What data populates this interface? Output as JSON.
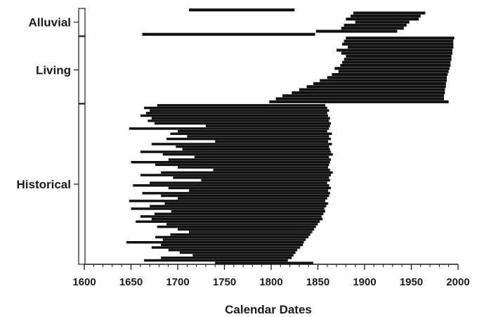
{
  "chart_data": {
    "type": "bar",
    "orientation": "horizontal-range",
    "title": "",
    "xlabel": "Calendar Dates",
    "ylabel": "",
    "xlim": [
      1600,
      2000
    ],
    "x_ticks": [
      1600,
      1650,
      1700,
      1750,
      1800,
      1850,
      1900,
      1950,
      2000
    ],
    "grid": false,
    "legend": "none",
    "bar_color": "#111111",
    "groups": [
      {
        "name": "Alluvial",
        "ranges": [
          [
            1712,
            1825
          ],
          [
            1888,
            1965
          ],
          [
            1885,
            1960
          ],
          [
            1880,
            1958
          ],
          [
            1890,
            1948
          ],
          [
            1878,
            1945
          ],
          [
            1875,
            1942
          ],
          [
            1848,
            1935
          ],
          [
            1662,
            1847
          ]
        ]
      },
      {
        "name": "Living",
        "ranges": [
          [
            1880,
            1996
          ],
          [
            1878,
            1995
          ],
          [
            1876,
            1995
          ],
          [
            1882,
            1995
          ],
          [
            1870,
            1994
          ],
          [
            1875,
            1994
          ],
          [
            1880,
            1993
          ],
          [
            1878,
            1993
          ],
          [
            1876,
            1992
          ],
          [
            1874,
            1992
          ],
          [
            1868,
            1991
          ],
          [
            1872,
            1990
          ],
          [
            1865,
            1989
          ],
          [
            1860,
            1988
          ],
          [
            1852,
            1988
          ],
          [
            1845,
            1987
          ],
          [
            1838,
            1987
          ],
          [
            1830,
            1986
          ],
          [
            1822,
            1986
          ],
          [
            1812,
            1985
          ],
          [
            1805,
            1985
          ],
          [
            1798,
            1990
          ]
        ]
      },
      {
        "name": "Historical",
        "ranges": [
          [
            1678,
            1858
          ],
          [
            1664,
            1860
          ],
          [
            1670,
            1862
          ],
          [
            1666,
            1860
          ],
          [
            1660,
            1861
          ],
          [
            1672,
            1863
          ],
          [
            1668,
            1862
          ],
          [
            1675,
            1864
          ],
          [
            1730,
            1863
          ],
          [
            1648,
            1862
          ],
          [
            1700,
            1860
          ],
          [
            1692,
            1865
          ],
          [
            1710,
            1862
          ],
          [
            1688,
            1864
          ],
          [
            1740,
            1861
          ],
          [
            1672,
            1865
          ],
          [
            1698,
            1862
          ],
          [
            1705,
            1863
          ],
          [
            1660,
            1864
          ],
          [
            1684,
            1866
          ],
          [
            1718,
            1862
          ],
          [
            1690,
            1864
          ],
          [
            1650,
            1863
          ],
          [
            1676,
            1862
          ],
          [
            1700,
            1861
          ],
          [
            1738,
            1863
          ],
          [
            1682,
            1866
          ],
          [
            1660,
            1864
          ],
          [
            1695,
            1862
          ],
          [
            1725,
            1863
          ],
          [
            1670,
            1860
          ],
          [
            1652,
            1862
          ],
          [
            1690,
            1864
          ],
          [
            1712,
            1861
          ],
          [
            1662,
            1863
          ],
          [
            1682,
            1862
          ],
          [
            1700,
            1860
          ],
          [
            1648,
            1858
          ],
          [
            1686,
            1861
          ],
          [
            1670,
            1859
          ],
          [
            1650,
            1857
          ],
          [
            1693,
            1858
          ],
          [
            1675,
            1856
          ],
          [
            1660,
            1854
          ],
          [
            1672,
            1855
          ],
          [
            1655,
            1852
          ],
          [
            1688,
            1850
          ],
          [
            1678,
            1848
          ],
          [
            1700,
            1846
          ],
          [
            1712,
            1844
          ],
          [
            1692,
            1842
          ],
          [
            1676,
            1840
          ],
          [
            1684,
            1837
          ],
          [
            1645,
            1835
          ],
          [
            1682,
            1834
          ],
          [
            1672,
            1831
          ],
          [
            1690,
            1828
          ],
          [
            1702,
            1826
          ],
          [
            1716,
            1824
          ],
          [
            1682,
            1822
          ],
          [
            1664,
            1818
          ],
          [
            1740,
            1845
          ]
        ]
      }
    ]
  }
}
